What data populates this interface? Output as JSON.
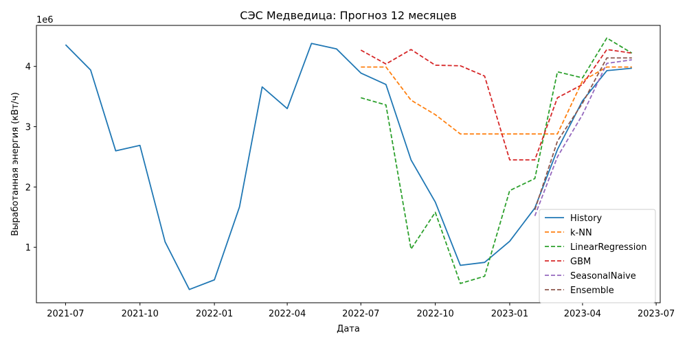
{
  "chart_data": {
    "type": "line",
    "title": "СЭС Медведица: Прогноз 12 месяцев",
    "xlabel": "Дата",
    "ylabel": "Выработанная энергия (кВт/ч)",
    "y_offset_label": "1e6",
    "x_axis": {
      "type": "date",
      "range": [
        "2021-05-26",
        "2023-07-06"
      ],
      "ticks": [
        "2021-07-01",
        "2021-10-01",
        "2022-01-01",
        "2022-04-01",
        "2022-07-01",
        "2022-10-01",
        "2023-01-01",
        "2023-04-01",
        "2023-07-01"
      ],
      "tick_labels": [
        "2021-07",
        "2021-10",
        "2022-01",
        "2022-04",
        "2022-07",
        "2022-10",
        "2023-01",
        "2023-04",
        "2023-07"
      ]
    },
    "y_axis": {
      "range": [
        80000,
        4680000
      ],
      "ticks": [
        1000000,
        2000000,
        3000000,
        4000000
      ],
      "tick_labels": [
        "1",
        "2",
        "3",
        "4"
      ]
    },
    "grid": false,
    "legend_position": "bottom-right",
    "series": [
      {
        "name": "History",
        "color": "#1f77b4",
        "dash": "solid",
        "x": [
          "2021-07-01",
          "2021-08-01",
          "2021-09-01",
          "2021-10-01",
          "2021-11-01",
          "2021-12-01",
          "2022-01-01",
          "2022-02-01",
          "2022-03-01",
          "2022-04-01",
          "2022-05-01",
          "2022-06-01",
          "2022-07-01",
          "2022-08-01",
          "2022-09-01",
          "2022-10-01",
          "2022-11-01",
          "2022-12-01",
          "2023-01-01",
          "2023-02-01",
          "2023-03-01",
          "2023-04-01",
          "2023-05-01",
          "2023-06-01"
        ],
        "y": [
          4360000,
          3940000,
          2600000,
          2690000,
          1090000,
          300000,
          460000,
          1670000,
          3660000,
          3300000,
          4380000,
          4290000,
          3890000,
          3700000,
          2450000,
          1750000,
          700000,
          750000,
          1100000,
          1650000,
          2620000,
          3430000,
          3930000,
          3970000
        ]
      },
      {
        "name": "k-NN",
        "color": "#ff7f0e",
        "dash": "dashed",
        "x": [
          "2022-07-01",
          "2022-08-01",
          "2022-09-01",
          "2022-10-01",
          "2022-11-01",
          "2022-12-01",
          "2023-01-01",
          "2023-02-01",
          "2023-03-01",
          "2023-04-01",
          "2023-05-01",
          "2023-06-01"
        ],
        "y": [
          3990000,
          3990000,
          3440000,
          3200000,
          2880000,
          2880000,
          2880000,
          2880000,
          2880000,
          3760000,
          3990000,
          3990000
        ]
      },
      {
        "name": "LinearRegression",
        "color": "#2ca02c",
        "dash": "dashed",
        "x": [
          "2022-07-01",
          "2022-08-01",
          "2022-09-01",
          "2022-10-01",
          "2022-11-01",
          "2022-12-01",
          "2023-01-01",
          "2023-02-01",
          "2023-03-01",
          "2023-04-01",
          "2023-05-01",
          "2023-06-01"
        ],
        "y": [
          3480000,
          3360000,
          970000,
          1580000,
          400000,
          520000,
          1940000,
          2140000,
          3910000,
          3810000,
          4470000,
          4220000
        ]
      },
      {
        "name": "GBM",
        "color": "#d62728",
        "dash": "dashed",
        "x": [
          "2022-07-01",
          "2022-08-01",
          "2022-09-01",
          "2022-10-01",
          "2022-11-01",
          "2022-12-01",
          "2023-01-01",
          "2023-02-01",
          "2023-03-01",
          "2023-04-01",
          "2023-05-01",
          "2023-06-01"
        ],
        "y": [
          4270000,
          4040000,
          4280000,
          4020000,
          4010000,
          3840000,
          2450000,
          2450000,
          3480000,
          3700000,
          4280000,
          4220000
        ]
      },
      {
        "name": "SeasonalNaive",
        "color": "#9467bd",
        "dash": "dashed",
        "x": [
          "2023-02-01",
          "2023-03-01",
          "2023-04-01",
          "2023-05-01",
          "2023-06-01"
        ],
        "y": [
          1520000,
          2500000,
          3200000,
          4050000,
          4110000
        ]
      },
      {
        "name": "Ensemble",
        "color": "#8c564b",
        "dash": "dashed",
        "x": [
          "2023-02-01",
          "2023-03-01",
          "2023-04-01",
          "2023-05-01",
          "2023-06-01"
        ],
        "y": [
          1620000,
          2760000,
          3390000,
          4140000,
          4140000
        ]
      }
    ]
  }
}
